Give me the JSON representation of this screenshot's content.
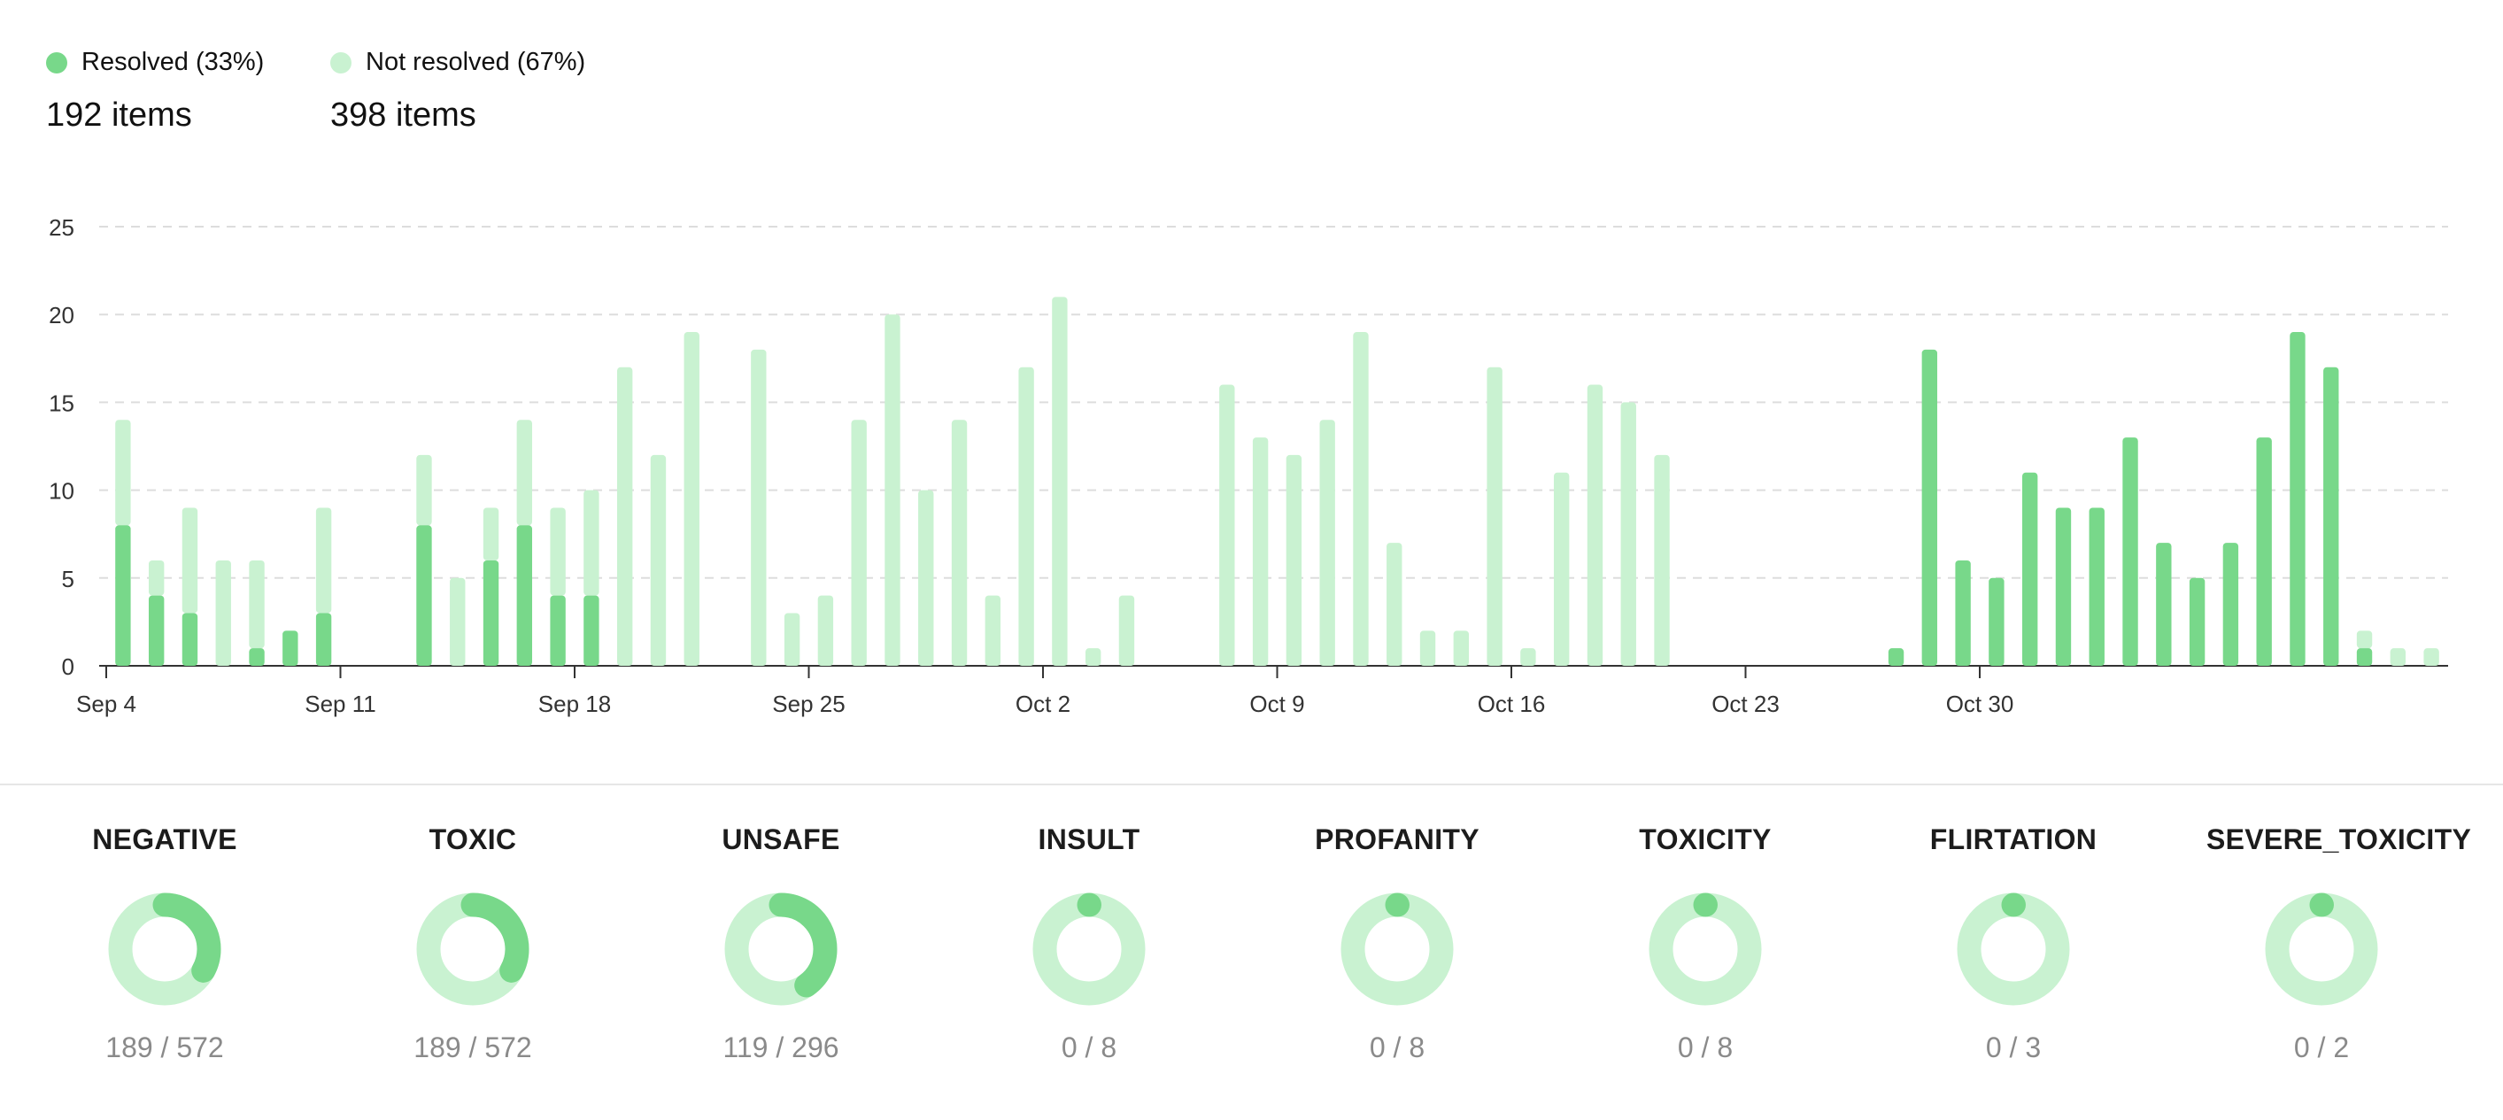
{
  "colors": {
    "resolved": "#78d88a",
    "not_resolved": "#c9f2d1",
    "axis": "#333333",
    "grid": "#dddddd",
    "tick_text": "#333333"
  },
  "legend": {
    "resolved": {
      "label": "Resolved (33%)",
      "count": "192 items"
    },
    "not_resolved": {
      "label": "Not resolved (67%)",
      "count": "398 items"
    }
  },
  "chart_data": {
    "type": "bar",
    "stacked": true,
    "x_tick_labels": [
      "Sep 4",
      "Sep 11",
      "Sep 18",
      "Sep 25",
      "Oct 2",
      "Oct 9",
      "Oct 16",
      "Oct 23",
      "Oct 30"
    ],
    "y_ticks": [
      0,
      5,
      10,
      15,
      20,
      25
    ],
    "ylim": [
      0,
      25
    ],
    "grid": true,
    "series": [
      {
        "name": "Resolved",
        "values": [
          8,
          4,
          3,
          0,
          1,
          2,
          3,
          0,
          0,
          8,
          0,
          6,
          8,
          4,
          4,
          0,
          0,
          0,
          0,
          0,
          0,
          0,
          0,
          0,
          0,
          0,
          0,
          0,
          0,
          0,
          0,
          0,
          0,
          0,
          0,
          0,
          0,
          0,
          0,
          0,
          0,
          0,
          0,
          0,
          0,
          0,
          0,
          0,
          0,
          0,
          0,
          0,
          0,
          1,
          18,
          6,
          5,
          11,
          9,
          9,
          13,
          7,
          5,
          7,
          13,
          19,
          17,
          1,
          0,
          0
        ]
      },
      {
        "name": "Not resolved",
        "values": [
          6,
          2,
          6,
          6,
          5,
          0,
          6,
          0,
          0,
          4,
          5,
          3,
          6,
          5,
          6,
          17,
          12,
          19,
          0,
          18,
          3,
          4,
          14,
          20,
          10,
          14,
          4,
          17,
          21,
          1,
          4,
          0,
          0,
          16,
          13,
          12,
          14,
          19,
          7,
          2,
          2,
          17,
          1,
          11,
          16,
          15,
          12,
          0,
          0,
          0,
          0,
          0,
          0,
          0,
          0,
          0,
          0,
          0,
          0,
          0,
          0,
          0,
          0,
          0,
          0,
          0,
          0,
          1,
          1,
          1
        ]
      }
    ]
  },
  "categories": [
    {
      "name": "NEGATIVE",
      "resolved": 189,
      "total": 572,
      "ratio": "189 / 572"
    },
    {
      "name": "TOXIC",
      "resolved": 189,
      "total": 572,
      "ratio": "189 / 572"
    },
    {
      "name": "UNSAFE",
      "resolved": 119,
      "total": 296,
      "ratio": "119 / 296"
    },
    {
      "name": "INSULT",
      "resolved": 0,
      "total": 8,
      "ratio": "0 / 8"
    },
    {
      "name": "PROFANITY",
      "resolved": 0,
      "total": 8,
      "ratio": "0 / 8"
    },
    {
      "name": "TOXICITY",
      "resolved": 0,
      "total": 8,
      "ratio": "0 / 8"
    },
    {
      "name": "FLIRTATION",
      "resolved": 0,
      "total": 3,
      "ratio": "0 / 3"
    },
    {
      "name": "SEVERE_TOXICITY",
      "resolved": 0,
      "total": 2,
      "ratio": "0 / 2"
    }
  ]
}
